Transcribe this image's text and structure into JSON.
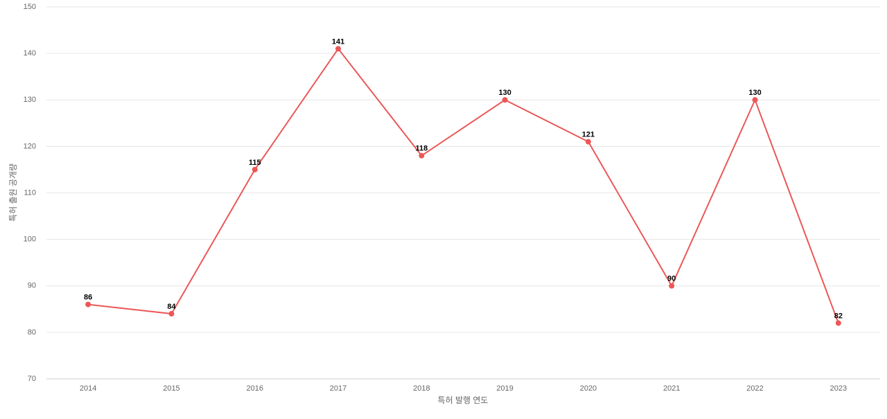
{
  "chart_data": {
    "type": "line",
    "x_label": "특허 발행 연도",
    "y_label": "특허 출원 공개량",
    "categories": [
      "2014",
      "2015",
      "2016",
      "2017",
      "2018",
      "2019",
      "2020",
      "2021",
      "2022",
      "2023"
    ],
    "values": [
      86,
      84,
      115,
      141,
      118,
      130,
      121,
      90,
      130,
      82
    ],
    "color": "#eb5757",
    "ylim": [
      70,
      150
    ],
    "yticks": [
      70,
      80,
      90,
      100,
      110,
      120,
      130,
      140,
      150
    ],
    "grid": true
  }
}
